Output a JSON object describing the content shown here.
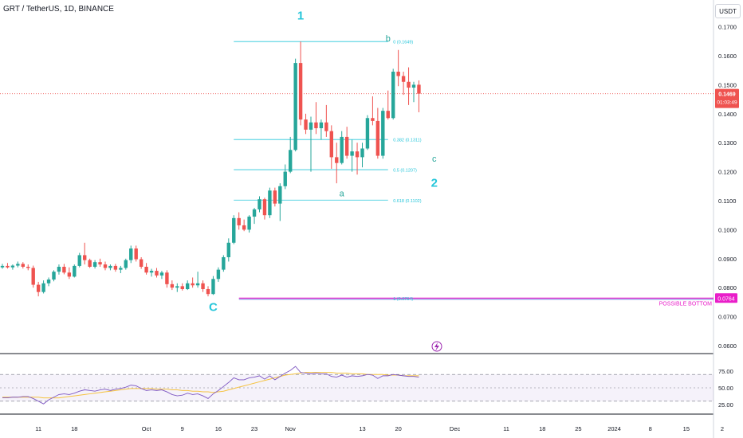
{
  "header": {
    "title": "GRT / TetherUS, 1D, BINANCE",
    "currency": "USDT"
  },
  "price_badge": {
    "value": "0.1469",
    "countdown": "01:03:49"
  },
  "bottom_badge": {
    "value": "0.0764"
  },
  "colors": {
    "up": "#26a69a",
    "down": "#ef5350",
    "fib": "#26c6da",
    "wave": "#26a69a",
    "bottom": "#e91ec9",
    "rsi": "#7e57c2",
    "rsi_ma": "#f5c342",
    "grid": "#d1d4dc"
  },
  "chart_data": {
    "type": "candlestick",
    "price_axis": {
      "ylim": [
        0.055,
        0.175
      ],
      "ticks": [
        "0.1700",
        "0.1600",
        "0.1500",
        "0.1400",
        "0.1300",
        "0.1200",
        "0.1100",
        "0.1000",
        "0.0900",
        "0.0800",
        "0.0700",
        "0.0600"
      ]
    },
    "x_axis": {
      "ticks": [
        "11",
        "18",
        "Oct",
        "9",
        "16",
        "23",
        "Nov",
        "13",
        "20",
        "Dec",
        "11",
        "18",
        "25",
        "2024",
        "8",
        "15",
        "2"
      ]
    },
    "candles": [
      [
        0.087,
        0.0882,
        0.0865,
        0.0875
      ],
      [
        0.0875,
        0.0885,
        0.0866,
        0.087
      ],
      [
        0.087,
        0.088,
        0.0862,
        0.0876
      ],
      [
        0.0876,
        0.089,
        0.087,
        0.0882
      ],
      [
        0.0882,
        0.0888,
        0.0866,
        0.0872
      ],
      [
        0.0872,
        0.088,
        0.086,
        0.0868
      ],
      [
        0.0868,
        0.0876,
        0.08,
        0.081
      ],
      [
        0.081,
        0.082,
        0.077,
        0.0785
      ],
      [
        0.0785,
        0.0825,
        0.078,
        0.0815
      ],
      [
        0.0815,
        0.0835,
        0.0805,
        0.0828
      ],
      [
        0.0828,
        0.086,
        0.0822,
        0.0855
      ],
      [
        0.0855,
        0.088,
        0.0845,
        0.0872
      ],
      [
        0.0872,
        0.0882,
        0.0846,
        0.0852
      ],
      [
        0.0852,
        0.087,
        0.083,
        0.0838
      ],
      [
        0.0838,
        0.088,
        0.0835,
        0.0875
      ],
      [
        0.0875,
        0.092,
        0.087,
        0.0912
      ],
      [
        0.0912,
        0.0955,
        0.088,
        0.0895
      ],
      [
        0.0895,
        0.09,
        0.0868,
        0.0872
      ],
      [
        0.0872,
        0.0895,
        0.0866,
        0.0888
      ],
      [
        0.0888,
        0.09,
        0.0872,
        0.088
      ],
      [
        0.088,
        0.089,
        0.086,
        0.0868
      ],
      [
        0.0868,
        0.088,
        0.086,
        0.0875
      ],
      [
        0.0875,
        0.0882,
        0.0855,
        0.0862
      ],
      [
        0.0862,
        0.0875,
        0.085,
        0.0868
      ],
      [
        0.0868,
        0.09,
        0.0862,
        0.0895
      ],
      [
        0.0895,
        0.0945,
        0.0885,
        0.0935
      ],
      [
        0.0935,
        0.0945,
        0.089,
        0.0898
      ],
      [
        0.0898,
        0.0905,
        0.0865,
        0.0872
      ],
      [
        0.0872,
        0.0885,
        0.0845,
        0.0852
      ],
      [
        0.0852,
        0.0865,
        0.0838,
        0.0858
      ],
      [
        0.0858,
        0.0868,
        0.0835,
        0.0842
      ],
      [
        0.0842,
        0.0858,
        0.083,
        0.0852
      ],
      [
        0.0852,
        0.086,
        0.08,
        0.0812
      ],
      [
        0.0812,
        0.0825,
        0.0792,
        0.08
      ],
      [
        0.08,
        0.0815,
        0.0785,
        0.0805
      ],
      [
        0.0805,
        0.0815,
        0.079,
        0.0795
      ],
      [
        0.0795,
        0.0825,
        0.0792,
        0.0815
      ],
      [
        0.0815,
        0.0835,
        0.08,
        0.0808
      ],
      [
        0.0808,
        0.0855,
        0.08,
        0.0815
      ],
      [
        0.0815,
        0.0825,
        0.0785,
        0.0795
      ],
      [
        0.0795,
        0.0805,
        0.077,
        0.0778
      ],
      [
        0.0778,
        0.084,
        0.0775,
        0.083
      ],
      [
        0.083,
        0.087,
        0.082,
        0.0862
      ],
      [
        0.0862,
        0.0912,
        0.0855,
        0.0905
      ],
      [
        0.0905,
        0.097,
        0.089,
        0.0955
      ],
      [
        0.0955,
        0.105,
        0.095,
        0.104
      ],
      [
        0.104,
        0.106,
        0.1,
        0.1015
      ],
      [
        0.1015,
        0.1035,
        0.0995,
        0.1
      ],
      [
        0.1,
        0.105,
        0.099,
        0.1045
      ],
      [
        0.1045,
        0.1075,
        0.102,
        0.107
      ],
      [
        0.107,
        0.1115,
        0.106,
        0.1105
      ],
      [
        0.1105,
        0.111,
        0.1035,
        0.105
      ],
      [
        0.105,
        0.1145,
        0.104,
        0.1135
      ],
      [
        0.1135,
        0.1145,
        0.108,
        0.109
      ],
      [
        0.109,
        0.116,
        0.103,
        0.115
      ],
      [
        0.115,
        0.1225,
        0.114,
        0.12
      ],
      [
        0.12,
        0.132,
        0.1195,
        0.1275
      ],
      [
        0.1275,
        0.159,
        0.127,
        0.1575
      ],
      [
        0.1575,
        0.1649,
        0.136,
        0.138
      ],
      [
        0.138,
        0.14,
        0.133,
        0.1345
      ],
      [
        0.1345,
        0.139,
        0.12,
        0.137
      ],
      [
        0.137,
        0.144,
        0.133,
        0.135
      ],
      [
        0.135,
        0.138,
        0.131,
        0.137
      ],
      [
        0.137,
        0.143,
        0.132,
        0.134
      ],
      [
        0.134,
        0.136,
        0.121,
        0.125
      ],
      [
        0.125,
        0.13,
        0.116,
        0.123
      ],
      [
        0.123,
        0.134,
        0.1225,
        0.132
      ],
      [
        0.132,
        0.1355,
        0.1245,
        0.1255
      ],
      [
        0.1255,
        0.131,
        0.12,
        0.127
      ],
      [
        0.127,
        0.13,
        0.119,
        0.125
      ],
      [
        0.125,
        0.13,
        0.1215,
        0.128
      ],
      [
        0.128,
        0.1395,
        0.1275,
        0.1385
      ],
      [
        0.1385,
        0.146,
        0.136,
        0.1375
      ],
      [
        0.1375,
        0.142,
        0.1245,
        0.1255
      ],
      [
        0.1255,
        0.142,
        0.1245,
        0.141
      ],
      [
        0.141,
        0.148,
        0.138,
        0.1385
      ],
      [
        0.1385,
        0.1555,
        0.138,
        0.1545
      ],
      [
        0.1545,
        0.162,
        0.1495,
        0.153
      ],
      [
        0.153,
        0.1545,
        0.1465,
        0.151
      ],
      [
        0.151,
        0.156,
        0.143,
        0.149
      ],
      [
        0.149,
        0.151,
        0.144,
        0.15
      ],
      [
        0.15,
        0.1515,
        0.1405,
        0.1469
      ]
    ],
    "fib_levels": [
      {
        "price": 0.1649,
        "label": "0 (0.1649)"
      },
      {
        "price": 0.1311,
        "label": "0.382 (0.1311)"
      },
      {
        "price": 0.1207,
        "label": "0.5 (0.1207)"
      },
      {
        "price": 0.1102,
        "label": "0.618 (0.1102)"
      },
      {
        "price": 0.0764,
        "label": "1 (0.0764)"
      }
    ],
    "current_price": 0.1469,
    "possible_bottom": {
      "price": 0.0764,
      "label": "POSSIBLE BOTTOM"
    },
    "wave_labels": [
      {
        "text": "1",
        "index": 58,
        "price": 0.1725,
        "big": true
      },
      {
        "text": "b",
        "index": 75,
        "price": 0.165,
        "big": false
      },
      {
        "text": "a",
        "index": 66,
        "price": 0.1115,
        "big": false
      },
      {
        "text": "c",
        "index": 84,
        "price": 0.1235,
        "big": false
      },
      {
        "text": "2",
        "index": 84,
        "price": 0.1148,
        "big": true
      },
      {
        "text": "C",
        "index": 41,
        "price": 0.072,
        "big": true
      }
    ],
    "rsi": {
      "ticks": [
        "75.00",
        "50.00",
        "25.00"
      ],
      "bands": [
        70,
        50,
        30
      ],
      "values": [
        35,
        35,
        36,
        36,
        37,
        37,
        34,
        30,
        26,
        32,
        36,
        40,
        41,
        40,
        42,
        45,
        47,
        46,
        45,
        47,
        48,
        46,
        48,
        49,
        51,
        54,
        53,
        49,
        46,
        47,
        46,
        47,
        44,
        40,
        38,
        39,
        42,
        40,
        41,
        38,
        34,
        41,
        46,
        52,
        58,
        65,
        62,
        62,
        65,
        66,
        68,
        63,
        68,
        62,
        67,
        72,
        76,
        82,
        73,
        72,
        71,
        72,
        71,
        71,
        67,
        66,
        69,
        66,
        68,
        67,
        68,
        70,
        69,
        64,
        68,
        68,
        70,
        69,
        68,
        67,
        67,
        66
      ],
      "ma": [
        36,
        36,
        36,
        36,
        36,
        36,
        36,
        36,
        35,
        35,
        35,
        35,
        36,
        37,
        38,
        39,
        40,
        41,
        42,
        43,
        44,
        45,
        46,
        47,
        48,
        49,
        49,
        49,
        49,
        49,
        48,
        48,
        48,
        47,
        47,
        46,
        46,
        45,
        45,
        44,
        44,
        43,
        44,
        45,
        47,
        49,
        51,
        53,
        55,
        57,
        59,
        61,
        63,
        65,
        67,
        69,
        70,
        71,
        72,
        73,
        73,
        73,
        73,
        73,
        73,
        72,
        72,
        72,
        71,
        71,
        71,
        70,
        70,
        70,
        70,
        69,
        69,
        69,
        68,
        68,
        68,
        68
      ]
    }
  }
}
